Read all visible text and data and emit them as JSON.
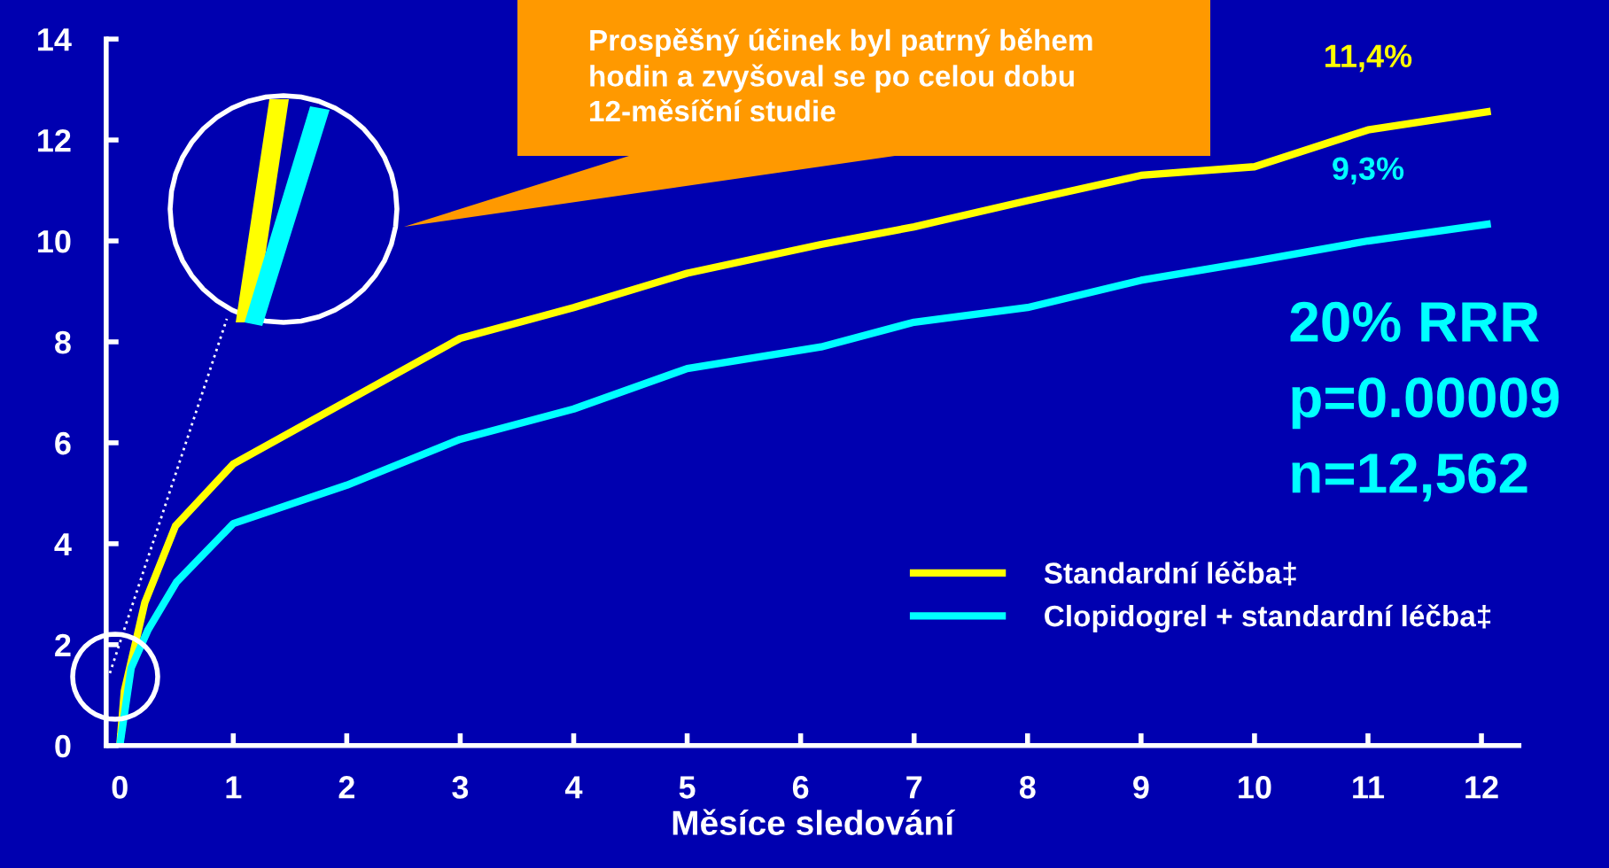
{
  "chart_data": {
    "type": "line",
    "xlabel": "Měsíce sledování",
    "xlim": [
      -0.12,
      12.33
    ],
    "ylim": [
      0,
      14
    ],
    "xticks": [
      0,
      1,
      2,
      3,
      4,
      5,
      6,
      7,
      8,
      9,
      10,
      11,
      12
    ],
    "yticks": [
      0,
      2,
      4,
      6,
      8,
      10,
      12,
      14
    ],
    "grid": false,
    "legend": "right",
    "marker": "none",
    "line_style": "solid",
    "series": [
      {
        "name": "Standardní léčba‡",
        "color": "#ffff00",
        "x": [
          0,
          0.04,
          0.22,
          0.49,
          1,
          3,
          4,
          5,
          6.18,
          7,
          8,
          9,
          10,
          11,
          12.05
        ],
        "values": [
          0,
          1.08,
          2.83,
          4.35,
          5.58,
          8.07,
          8.68,
          9.36,
          9.93,
          10.28,
          10.8,
          11.3,
          11.47,
          12.2,
          12.56
        ]
      },
      {
        "name": "Clopidogrel + standardní léčba‡",
        "color": "#00ffff",
        "x": [
          0,
          0.1,
          0.25,
          0.5,
          1,
          2,
          3,
          4,
          5,
          6.18,
          7,
          8,
          9,
          10,
          11,
          12.05
        ],
        "values": [
          0,
          1.54,
          2.3,
          3.24,
          4.4,
          5.16,
          6.07,
          6.67,
          7.47,
          7.9,
          8.39,
          8.68,
          9.22,
          9.6,
          10.0,
          10.33
        ]
      }
    ],
    "annotations": [
      "Prospěšný účinek byl patrný během\nhodin a zvyšoval se po celou dobu\n12-měsíční studie",
      "20% RRR",
      "p=0.00009",
      "n=12,562",
      "11,4%",
      "9,3%"
    ]
  }
}
